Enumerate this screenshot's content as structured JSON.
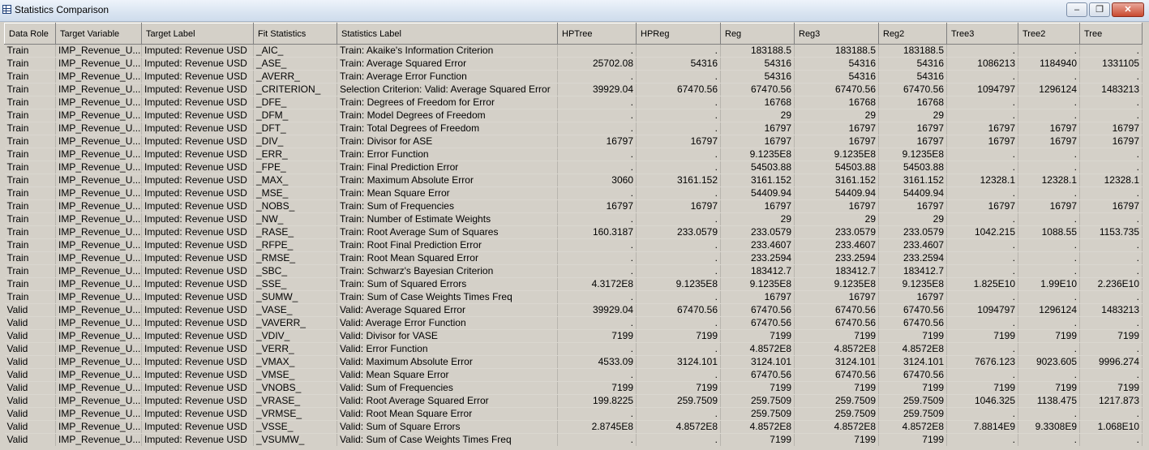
{
  "window": {
    "title": "Statistics Comparison",
    "btn_min": "–",
    "btn_restore": "❐",
    "btn_close": "✕"
  },
  "columns": [
    "Data Role",
    "Target Variable",
    "Target Label",
    "Fit Statistics",
    "Statistics Label",
    "HPTree",
    "HPReg",
    "Reg",
    "Reg3",
    "Reg2",
    "Tree3",
    "Tree2",
    "Tree"
  ],
  "rows": [
    [
      "Train",
      "IMP_Revenue_U...",
      "Imputed: Revenue USD",
      "_AIC_",
      "Train: Akaike's Information Criterion",
      ".",
      ".",
      "183188.5",
      "183188.5",
      "183188.5",
      ".",
      ".",
      "."
    ],
    [
      "Train",
      "IMP_Revenue_U...",
      "Imputed: Revenue USD",
      "_ASE_",
      "Train: Average Squared Error",
      "25702.08",
      "54316",
      "54316",
      "54316",
      "54316",
      "1086213",
      "1184940",
      "1331105"
    ],
    [
      "Train",
      "IMP_Revenue_U...",
      "Imputed: Revenue USD",
      "_AVERR_",
      "Train: Average Error Function",
      ".",
      ".",
      "54316",
      "54316",
      "54316",
      ".",
      ".",
      "."
    ],
    [
      "Train",
      "IMP_Revenue_U...",
      "Imputed: Revenue USD",
      "_CRITERION_",
      "Selection Criterion: Valid: Average Squared Error",
      "39929.04",
      "67470.56",
      "67470.56",
      "67470.56",
      "67470.56",
      "1094797",
      "1296124",
      "1483213"
    ],
    [
      "Train",
      "IMP_Revenue_U...",
      "Imputed: Revenue USD",
      "_DFE_",
      "Train: Degrees of Freedom for Error",
      ".",
      ".",
      "16768",
      "16768",
      "16768",
      ".",
      ".",
      "."
    ],
    [
      "Train",
      "IMP_Revenue_U...",
      "Imputed: Revenue USD",
      "_DFM_",
      "Train: Model Degrees of Freedom",
      ".",
      ".",
      "29",
      "29",
      "29",
      ".",
      ".",
      "."
    ],
    [
      "Train",
      "IMP_Revenue_U...",
      "Imputed: Revenue USD",
      "_DFT_",
      "Train: Total Degrees of Freedom",
      ".",
      ".",
      "16797",
      "16797",
      "16797",
      "16797",
      "16797",
      "16797"
    ],
    [
      "Train",
      "IMP_Revenue_U...",
      "Imputed: Revenue USD",
      "_DIV_",
      "Train: Divisor for ASE",
      "16797",
      "16797",
      "16797",
      "16797",
      "16797",
      "16797",
      "16797",
      "16797"
    ],
    [
      "Train",
      "IMP_Revenue_U...",
      "Imputed: Revenue USD",
      "_ERR_",
      "Train: Error Function",
      ".",
      ".",
      "9.1235E8",
      "9.1235E8",
      "9.1235E8",
      ".",
      ".",
      "."
    ],
    [
      "Train",
      "IMP_Revenue_U...",
      "Imputed: Revenue USD",
      "_FPE_",
      "Train: Final Prediction Error",
      ".",
      ".",
      "54503.88",
      "54503.88",
      "54503.88",
      ".",
      ".",
      "."
    ],
    [
      "Train",
      "IMP_Revenue_U...",
      "Imputed: Revenue USD",
      "_MAX_",
      "Train: Maximum Absolute Error",
      "3060",
      "3161.152",
      "3161.152",
      "3161.152",
      "3161.152",
      "12328.1",
      "12328.1",
      "12328.1"
    ],
    [
      "Train",
      "IMP_Revenue_U...",
      "Imputed: Revenue USD",
      "_MSE_",
      "Train: Mean Square Error",
      ".",
      ".",
      "54409.94",
      "54409.94",
      "54409.94",
      ".",
      ".",
      "."
    ],
    [
      "Train",
      "IMP_Revenue_U...",
      "Imputed: Revenue USD",
      "_NOBS_",
      "Train: Sum of Frequencies",
      "16797",
      "16797",
      "16797",
      "16797",
      "16797",
      "16797",
      "16797",
      "16797"
    ],
    [
      "Train",
      "IMP_Revenue_U...",
      "Imputed: Revenue USD",
      "_NW_",
      "Train: Number of Estimate Weights",
      ".",
      ".",
      "29",
      "29",
      "29",
      ".",
      ".",
      "."
    ],
    [
      "Train",
      "IMP_Revenue_U...",
      "Imputed: Revenue USD",
      "_RASE_",
      "Train: Root Average Sum of Squares",
      "160.3187",
      "233.0579",
      "233.0579",
      "233.0579",
      "233.0579",
      "1042.215",
      "1088.55",
      "1153.735"
    ],
    [
      "Train",
      "IMP_Revenue_U...",
      "Imputed: Revenue USD",
      "_RFPE_",
      "Train: Root Final Prediction Error",
      ".",
      ".",
      "233.4607",
      "233.4607",
      "233.4607",
      ".",
      ".",
      "."
    ],
    [
      "Train",
      "IMP_Revenue_U...",
      "Imputed: Revenue USD",
      "_RMSE_",
      "Train: Root Mean Squared Error",
      ".",
      ".",
      "233.2594",
      "233.2594",
      "233.2594",
      ".",
      ".",
      "."
    ],
    [
      "Train",
      "IMP_Revenue_U...",
      "Imputed: Revenue USD",
      "_SBC_",
      "Train: Schwarz's Bayesian Criterion",
      ".",
      ".",
      "183412.7",
      "183412.7",
      "183412.7",
      ".",
      ".",
      "."
    ],
    [
      "Train",
      "IMP_Revenue_U...",
      "Imputed: Revenue USD",
      "_SSE_",
      "Train: Sum of Squared Errors",
      "4.3172E8",
      "9.1235E8",
      "9.1235E8",
      "9.1235E8",
      "9.1235E8",
      "1.825E10",
      "1.99E10",
      "2.236E10"
    ],
    [
      "Train",
      "IMP_Revenue_U...",
      "Imputed: Revenue USD",
      "_SUMW_",
      "Train: Sum of Case Weights Times Freq",
      ".",
      ".",
      "16797",
      "16797",
      "16797",
      ".",
      ".",
      "."
    ],
    [
      "Valid",
      "IMP_Revenue_U...",
      "Imputed: Revenue USD",
      "_VASE_",
      "Valid: Average Squared Error",
      "39929.04",
      "67470.56",
      "67470.56",
      "67470.56",
      "67470.56",
      "1094797",
      "1296124",
      "1483213"
    ],
    [
      "Valid",
      "IMP_Revenue_U...",
      "Imputed: Revenue USD",
      "_VAVERR_",
      "Valid: Average Error Function",
      ".",
      ".",
      "67470.56",
      "67470.56",
      "67470.56",
      ".",
      ".",
      "."
    ],
    [
      "Valid",
      "IMP_Revenue_U...",
      "Imputed: Revenue USD",
      "_VDIV_",
      "Valid: Divisor for VASE",
      "7199",
      "7199",
      "7199",
      "7199",
      "7199",
      "7199",
      "7199",
      "7199"
    ],
    [
      "Valid",
      "IMP_Revenue_U...",
      "Imputed: Revenue USD",
      "_VERR_",
      "Valid: Error Function",
      ".",
      ".",
      "4.8572E8",
      "4.8572E8",
      "4.8572E8",
      ".",
      ".",
      "."
    ],
    [
      "Valid",
      "IMP_Revenue_U...",
      "Imputed: Revenue USD",
      "_VMAX_",
      "Valid: Maximum Absolute Error",
      "4533.09",
      "3124.101",
      "3124.101",
      "3124.101",
      "3124.101",
      "7676.123",
      "9023.605",
      "9996.274"
    ],
    [
      "Valid",
      "IMP_Revenue_U...",
      "Imputed: Revenue USD",
      "_VMSE_",
      "Valid: Mean Square Error",
      ".",
      ".",
      "67470.56",
      "67470.56",
      "67470.56",
      ".",
      ".",
      "."
    ],
    [
      "Valid",
      "IMP_Revenue_U...",
      "Imputed: Revenue USD",
      "_VNOBS_",
      "Valid: Sum of Frequencies",
      "7199",
      "7199",
      "7199",
      "7199",
      "7199",
      "7199",
      "7199",
      "7199"
    ],
    [
      "Valid",
      "IMP_Revenue_U...",
      "Imputed: Revenue USD",
      "_VRASE_",
      "Valid: Root Average Squared Error",
      "199.8225",
      "259.7509",
      "259.7509",
      "259.7509",
      "259.7509",
      "1046.325",
      "1138.475",
      "1217.873"
    ],
    [
      "Valid",
      "IMP_Revenue_U...",
      "Imputed: Revenue USD",
      "_VRMSE_",
      "Valid: Root Mean Square Error",
      ".",
      ".",
      "259.7509",
      "259.7509",
      "259.7509",
      ".",
      ".",
      "."
    ],
    [
      "Valid",
      "IMP_Revenue_U...",
      "Imputed: Revenue USD",
      "_VSSE_",
      "Valid: Sum of Square Errors",
      "2.8745E8",
      "4.8572E8",
      "4.8572E8",
      "4.8572E8",
      "4.8572E8",
      "7.8814E9",
      "9.3308E9",
      "1.068E10"
    ],
    [
      "Valid",
      "IMP_Revenue_U...",
      "Imputed: Revenue USD",
      "_VSUMW_",
      "Valid: Sum of Case Weights Times Freq",
      ".",
      ".",
      "7199",
      "7199",
      "7199",
      ".",
      ".",
      "."
    ]
  ]
}
